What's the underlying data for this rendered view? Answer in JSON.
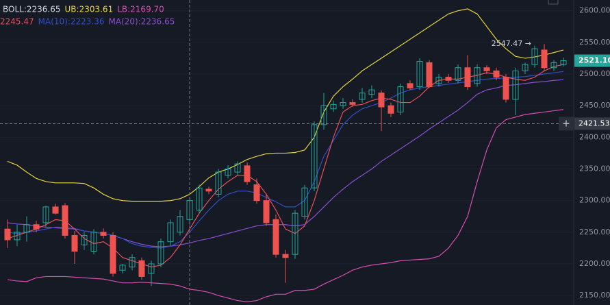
{
  "chart_data": {
    "type": "candlestick",
    "open": [
      2255,
      2238,
      2250,
      2262,
      2265,
      2290,
      2292,
      2245,
      2230,
      2220,
      2250,
      2245,
      2190,
      2195,
      2205,
      2185,
      2200,
      2235,
      2250,
      2270,
      2285,
      2318,
      2310,
      2340,
      2345,
      2355,
      2325,
      2300,
      2270,
      2215,
      2215,
      2275,
      2320,
      2420,
      2445,
      2450,
      2455,
      2460,
      2468,
      2470,
      2450,
      2440,
      2485,
      2480,
      2518,
      2485,
      2495,
      2490,
      2510,
      2485,
      2510,
      2505,
      2495,
      2460,
      2505,
      2515,
      2538,
      2510,
      2515
    ],
    "high": [
      2270,
      2262,
      2275,
      2268,
      2292,
      2295,
      2296,
      2252,
      2250,
      2255,
      2256,
      2250,
      2200,
      2215,
      2210,
      2205,
      2240,
      2270,
      2285,
      2305,
      2325,
      2322,
      2350,
      2356,
      2362,
      2360,
      2335,
      2310,
      2278,
      2222,
      2285,
      2325,
      2425,
      2470,
      2458,
      2462,
      2460,
      2478,
      2482,
      2474,
      2455,
      2485,
      2490,
      2525,
      2522,
      2500,
      2500,
      2515,
      2530,
      2515,
      2514,
      2510,
      2500,
      2510,
      2518,
      2545,
      2547.47,
      2522,
      2526
    ],
    "low": [
      2225,
      2228,
      2235,
      2250,
      2258,
      2278,
      2240,
      2200,
      2222,
      2215,
      2240,
      2180,
      2185,
      2190,
      2175,
      2165,
      2195,
      2228,
      2245,
      2262,
      2280,
      2310,
      2305,
      2335,
      2340,
      2325,
      2295,
      2260,
      2210,
      2170,
      2208,
      2270,
      2315,
      2412,
      2440,
      2445,
      2448,
      2455,
      2462,
      2410,
      2432,
      2435,
      2475,
      2475,
      2478,
      2480,
      2486,
      2485,
      2475,
      2480,
      2500,
      2490,
      2455,
      2435,
      2500,
      2510,
      2505,
      2505,
      2512
    ],
    "close": [
      2238,
      2250,
      2262,
      2255,
      2290,
      2280,
      2245,
      2220,
      2245,
      2250,
      2245,
      2185,
      2198,
      2210,
      2180,
      2200,
      2235,
      2265,
      2275,
      2300,
      2320,
      2315,
      2345,
      2350,
      2358,
      2330,
      2300,
      2265,
      2215,
      2210,
      2280,
      2320,
      2420,
      2450,
      2452,
      2455,
      2452,
      2470,
      2475,
      2448,
      2438,
      2480,
      2478,
      2520,
      2480,
      2495,
      2490,
      2510,
      2480,
      2510,
      2505,
      2495,
      2460,
      2505,
      2515,
      2540,
      2510,
      2518,
      2521.1
    ],
    "up_color": "#26a69a",
    "down_color": "#ef5350",
    "series": [
      {
        "color": "#e6d43c",
        "values": [
          2362,
          2356,
          2345,
          2335,
          2330,
          2328,
          2328,
          2328,
          2327,
          2320,
          2310,
          2303,
          2300,
          2299,
          2299,
          2299,
          2299,
          2300,
          2303,
          2310,
          2322,
          2336,
          2345,
          2350,
          2357,
          2365,
          2370,
          2374,
          2375,
          2375,
          2376,
          2380,
          2400,
          2440,
          2465,
          2480,
          2492,
          2505,
          2515,
          2525,
          2535,
          2545,
          2555,
          2565,
          2575,
          2585,
          2595,
          2600,
          2603,
          2595,
          2575,
          2555,
          2540,
          2528,
          2525,
          2527,
          2530,
          2534,
          2538
        ]
      },
      {
        "color": "#d64fb0",
        "values": [
          2175,
          2173,
          2172,
          2178,
          2180,
          2180,
          2180,
          2179,
          2178,
          2177,
          2176,
          2173,
          2170,
          2170,
          2171,
          2170,
          2169,
          2168,
          2165,
          2160,
          2158,
          2155,
          2150,
          2146,
          2142,
          2140,
          2142,
          2148,
          2152,
          2152,
          2158,
          2158,
          2160,
          2168,
          2175,
          2182,
          2190,
          2195,
          2198,
          2200,
          2202,
          2205,
          2206,
          2207,
          2208,
          2212,
          2225,
          2245,
          2275,
          2330,
          2380,
          2415,
          2428,
          2432,
          2436,
          2438,
          2440,
          2442,
          2444
        ]
      },
      {
        "color": "#8a4fd0",
        "values": [
          2265,
          2263,
          2262,
          2260,
          2258,
          2257,
          2256,
          2255,
          2252,
          2250,
          2248,
          2245,
          2240,
          2235,
          2231,
          2228,
          2227,
          2228,
          2230,
          2233,
          2237,
          2240,
          2244,
          2248,
          2252,
          2256,
          2260,
          2262,
          2262,
          2262,
          2260,
          2262,
          2275,
          2290,
          2305,
          2318,
          2330,
          2340,
          2350,
          2362,
          2372,
          2382,
          2392,
          2402,
          2413,
          2423,
          2433,
          2443,
          2455,
          2468,
          2475,
          2478,
          2482,
          2483,
          2485,
          2487,
          2488,
          2490,
          2491
        ]
      },
      {
        "color": "#2f4fc8",
        "values": [
          2250,
          2248,
          2250,
          2252,
          2255,
          2258,
          2258,
          2256,
          2252,
          2250,
          2248,
          2245,
          2240,
          2232,
          2228,
          2226,
          2225,
          2228,
          2235,
          2250,
          2268,
          2285,
          2300,
          2310,
          2315,
          2315,
          2312,
          2305,
          2298,
          2290,
          2290,
          2300,
          2330,
          2370,
          2395,
          2420,
          2435,
          2445,
          2450,
          2455,
          2462,
          2470,
          2475,
          2478,
          2480,
          2482,
          2484,
          2486,
          2488,
          2490,
          2492,
          2493,
          2494,
          2495,
          2496,
          2498,
          2500,
          2502,
          2504
        ]
      },
      {
        "color": "#e8505b",
        "values": [
          2240,
          2245,
          2250,
          2255,
          2262,
          2270,
          2268,
          2255,
          2240,
          2232,
          2235,
          2225,
          2210,
          2205,
          2200,
          2195,
          2198,
          2210,
          2230,
          2255,
          2280,
          2300,
          2318,
          2330,
          2340,
          2340,
          2330,
          2310,
          2285,
          2255,
          2248,
          2260,
          2300,
          2350,
          2400,
          2440,
          2450,
          2452,
          2458,
          2462,
          2460,
          2455,
          2455,
          2465,
          2480,
          2490,
          2492,
          2492,
          2495,
          2498,
          2502,
          2500,
          2495,
          2492,
          2490,
          2495,
          2505,
          2512,
          2515
        ]
      }
    ],
    "legend": [
      [
        {
          "label": "BOLL:2236.65",
          "color": "#d1d4dc"
        },
        {
          "label": "UB:2303.61",
          "color": "#e6d43c"
        },
        {
          "label": "LB:2169.70",
          "color": "#d64fb0"
        }
      ],
      [
        {
          "label": "2245.47",
          "color": "#e8505b"
        },
        {
          "label": "MA(10):2223.36",
          "color": "#2f4fc8"
        },
        {
          "label": "MA(20):2236.65",
          "color": "#8a4fd0"
        }
      ]
    ],
    "ylim": [
      2135,
      2617
    ],
    "yticks": [
      {
        "value": 2150,
        "label": "2150.00"
      },
      {
        "value": 2200,
        "label": "2200.00"
      },
      {
        "value": 2250,
        "label": "2250.00"
      },
      {
        "value": 2300,
        "label": "2300.00"
      },
      {
        "value": 2350,
        "label": "2350.00"
      },
      {
        "value": 2400,
        "label": "2400.00"
      },
      {
        "value": 2450,
        "label": "2450.00"
      },
      {
        "value": 2500,
        "label": "2500.00"
      },
      {
        "value": 2550,
        "label": "2550.00"
      },
      {
        "value": 2600,
        "label": "2600.00"
      }
    ],
    "grid": true,
    "last_price": {
      "value": 2521.1,
      "label": "2521.10"
    },
    "crosshair": {
      "value": 2421.53,
      "label": "2421.53"
    },
    "high_marker": {
      "value": 2547.47,
      "label": "2547.47 →"
    }
  }
}
